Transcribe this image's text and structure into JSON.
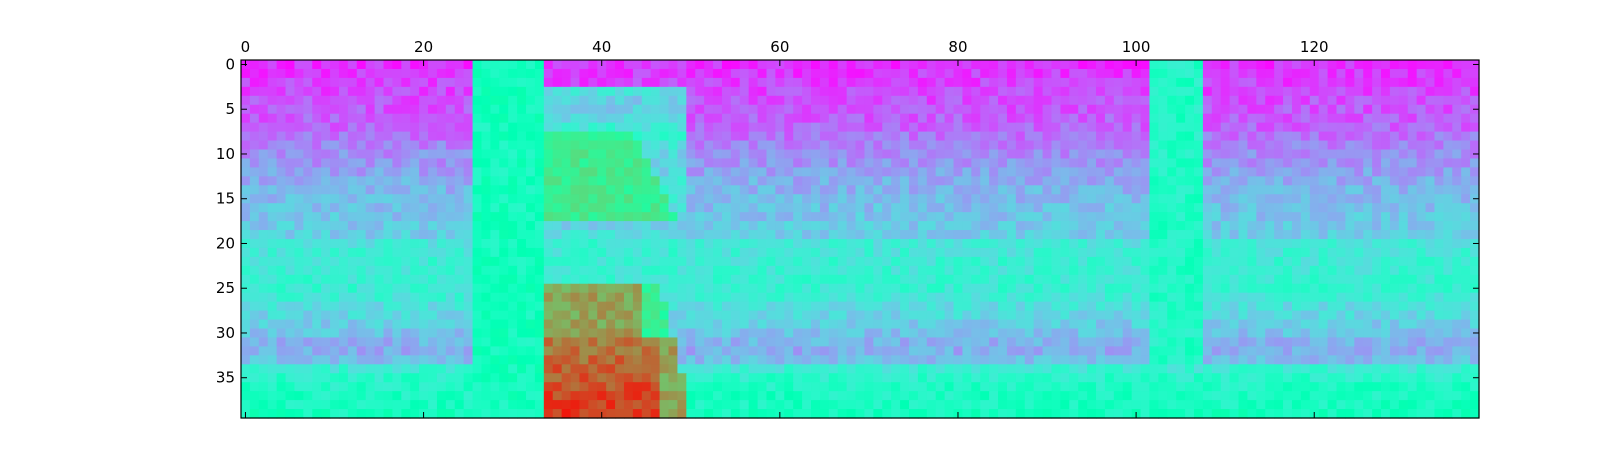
{
  "chart_data": {
    "type": "heatmap",
    "title": "",
    "xlabel": "",
    "ylabel": "",
    "n_cols": 139,
    "n_rows": 40,
    "xlim": [
      -0.5,
      138.5
    ],
    "ylim": [
      39.5,
      -0.5
    ],
    "x_ticks": [
      0,
      20,
      40,
      60,
      80,
      100,
      120
    ],
    "x_tick_labels": [
      "0",
      "20",
      "40",
      "60",
      "80",
      "100",
      "120"
    ],
    "x_tick_position": "top",
    "y_ticks": [
      0,
      5,
      10,
      15,
      20,
      25,
      30,
      35
    ],
    "y_tick_labels": [
      "0",
      "5",
      "10",
      "15",
      "20",
      "25",
      "30",
      "35"
    ],
    "y_tick_position": "left",
    "colormap": "rainbow",
    "value_range": [
      0,
      1
    ],
    "grid": false,
    "legend": "none",
    "background_profile_by_row": [
      0.06,
      0.07,
      0.08,
      0.09,
      0.1,
      0.11,
      0.12,
      0.13,
      0.15,
      0.17,
      0.19,
      0.2,
      0.22,
      0.24,
      0.25,
      0.26,
      0.27,
      0.28,
      0.29,
      0.3,
      0.36,
      0.37,
      0.38,
      0.38,
      0.39,
      0.39,
      0.37,
      0.34,
      0.32,
      0.3,
      0.28,
      0.25,
      0.24,
      0.27,
      0.38,
      0.42,
      0.44,
      0.45,
      0.46,
      0.47
    ],
    "features": [
      {
        "label": "vertical band",
        "x_range": [
          26,
          33
        ],
        "y_range": [
          0,
          39
        ],
        "level": 0.47
      },
      {
        "label": "upper cone",
        "x_range": [
          34,
          49
        ],
        "y_range": [
          8,
          17
        ],
        "level": 0.62
      },
      {
        "label": "lower cone",
        "x_range": [
          34,
          49
        ],
        "y_range": [
          25,
          39
        ],
        "level": 0.78
      },
      {
        "label": "core",
        "x_range": [
          34,
          46
        ],
        "y_range": [
          31,
          39
        ],
        "level": 0.9
      },
      {
        "label": "vertical stripe",
        "x_range": [
          102,
          107
        ],
        "y_range": [
          0,
          33
        ],
        "level": 0.44
      }
    ]
  },
  "colors": {
    "frame": "#000000",
    "background": "#ffffff"
  }
}
